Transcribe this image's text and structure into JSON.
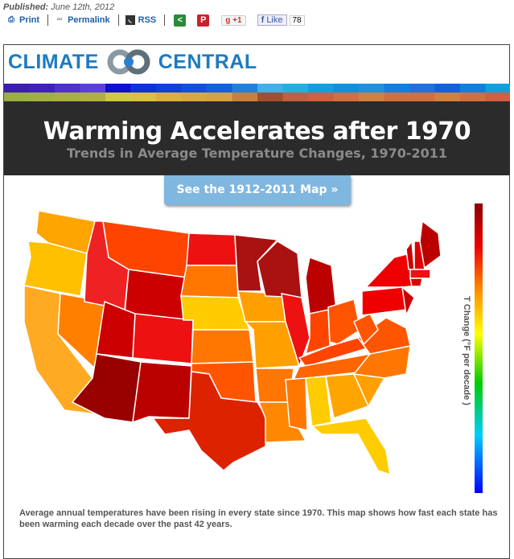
{
  "header": {
    "published_label": "Published:",
    "published_date": "June 12th, 2012"
  },
  "toolbar": {
    "print": "Print",
    "permalink": "Permalink",
    "rss": "RSS",
    "gplus": "+1",
    "like": "Like",
    "like_count": "78"
  },
  "logo": {
    "left": "CLIMATE",
    "right": "CENTRAL"
  },
  "colors": {
    "brand": "#1d7bbf",
    "band": "#2b2b2b",
    "button": "#7fb7e0"
  },
  "chart_data": {
    "type": "choropleth",
    "title": "Warming Accelerates after 1970",
    "subtitle": "Trends in Average Temperature Changes, 1970-2011",
    "legend_label": "T Change (°F per decade )",
    "scale": "dark red (fastest) to blue (slowest)",
    "button": "See the 1912-2011 Map »",
    "caption": "Average annual temperatures have been rising in every state since 1970. This map shows how fast each state has been warming each decade over the past 42 years."
  }
}
